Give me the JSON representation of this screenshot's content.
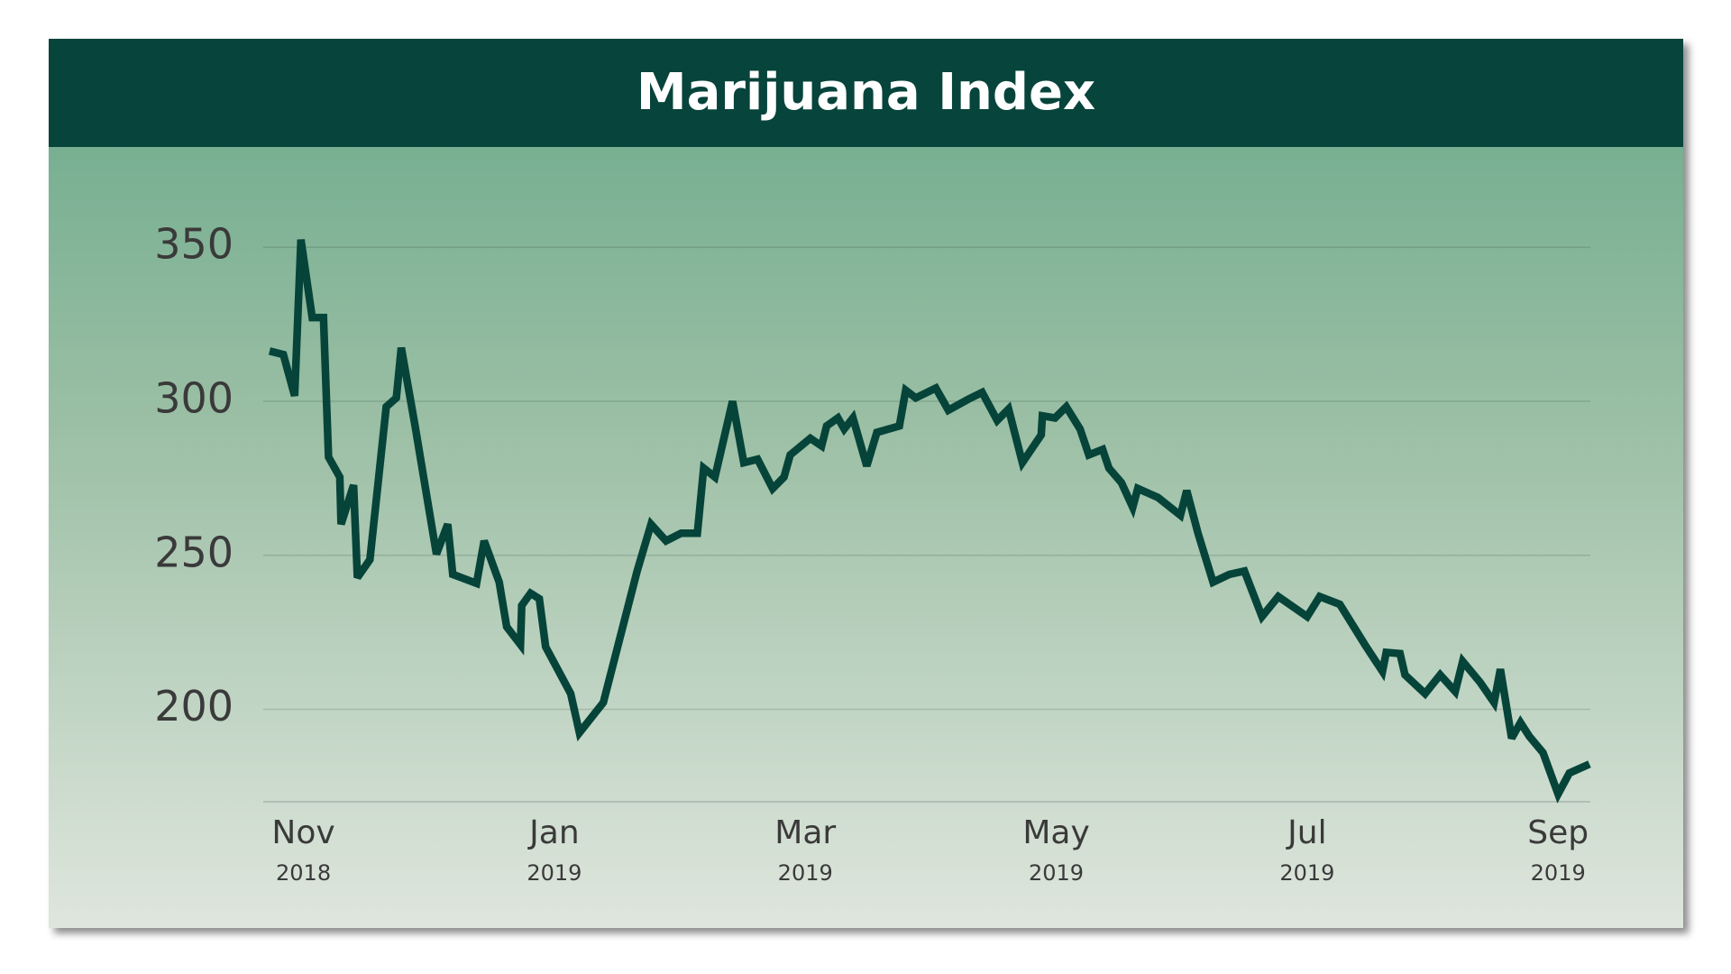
{
  "chart_data": {
    "type": "line",
    "title": "Marijuana Index",
    "color": "#06443a",
    "x": [
      -0.27,
      -0.16,
      -0.07,
      -0.02,
      0.07,
      0.16,
      0.2,
      0.29,
      0.3,
      0.4,
      0.43,
      0.53,
      0.66,
      0.74,
      0.78,
      0.89,
      1.06,
      1.15,
      1.19,
      1.38,
      1.44,
      1.56,
      1.62,
      1.73,
      1.74,
      1.81,
      1.88,
      1.93,
      2.13,
      2.2,
      2.39,
      2.66,
      2.77,
      2.89,
      3.01,
      3.14,
      3.19,
      3.28,
      3.42,
      3.51,
      3.62,
      3.74,
      3.83,
      3.88,
      4.04,
      4.13,
      4.17,
      4.26,
      4.31,
      4.38,
      4.49,
      4.57,
      4.75,
      4.8,
      4.88,
      5.04,
      5.14,
      5.3,
      5.41,
      5.53,
      5.62,
      5.73,
      5.88,
      5.89,
      5.99,
      6.08,
      6.19,
      6.26,
      6.37,
      6.42,
      6.52,
      6.61,
      6.65,
      6.81,
      6.99,
      7.04,
      7.13,
      7.25,
      7.38,
      7.5,
      7.64,
      7.77,
      8.0,
      8.1,
      8.26,
      8.46,
      8.6,
      8.63,
      8.74,
      8.78,
      8.94,
      9.06,
      9.18,
      9.24,
      9.38,
      9.49,
      9.54,
      9.63,
      9.7,
      9.77,
      9.88,
      10.0,
      10.09,
      10.25
    ],
    "values": [
      316.3,
      315.2,
      301.8,
      352.5,
      327.2,
      327.2,
      281.9,
      275.4,
      260.1,
      272.8,
      242.8,
      248.6,
      298.2,
      301.1,
      317.4,
      292.0,
      250.4,
      260.1,
      243.8,
      240.9,
      254.7,
      241.3,
      226.8,
      221.0,
      233.7,
      237.7,
      235.9,
      220.3,
      205.1,
      192.4,
      202.2,
      244.9,
      260.1,
      254.7,
      257.2,
      257.2,
      278.3,
      275.4,
      300.0,
      280.1,
      281.2,
      271.7,
      275.4,
      282.6,
      288.0,
      285.5,
      292.0,
      294.6,
      291.0,
      294.6,
      279.0,
      289.9,
      292.0,
      303.6,
      301.1,
      304.3,
      297.1,
      300.7,
      302.9,
      293.8,
      297.5,
      280.1,
      289.1,
      295.3,
      294.6,
      298.2,
      291.0,
      282.6,
      284.4,
      278.3,
      273.6,
      265.6,
      271.7,
      268.8,
      263.0,
      271.0,
      257.2,
      241.3,
      243.8,
      244.9,
      230.1,
      236.6,
      230.1,
      236.6,
      234.1,
      221.0,
      212.3,
      218.5,
      218.1,
      211.2,
      205.1,
      211.2,
      205.8,
      215.6,
      208.7,
      202.2,
      213.0,
      190.6,
      195.7,
      191.3,
      185.9,
      172.5,
      179.3,
      182.2
    ],
    "xlim": [
      -0.27,
      10.25
    ],
    "xticks": [
      {
        "value": 0,
        "label": "Nov 2018"
      },
      {
        "value": 2,
        "label": "Jan 2019"
      },
      {
        "value": 4,
        "label": "Mar 2019"
      },
      {
        "value": 6,
        "label": "May 2019"
      },
      {
        "value": 8,
        "label": "Jul 2019"
      },
      {
        "value": 10,
        "label": "Sep 2019"
      }
    ],
    "ylim": [
      170,
      365
    ],
    "yticks": [
      200,
      250,
      300,
      350
    ],
    "grid": true
  }
}
